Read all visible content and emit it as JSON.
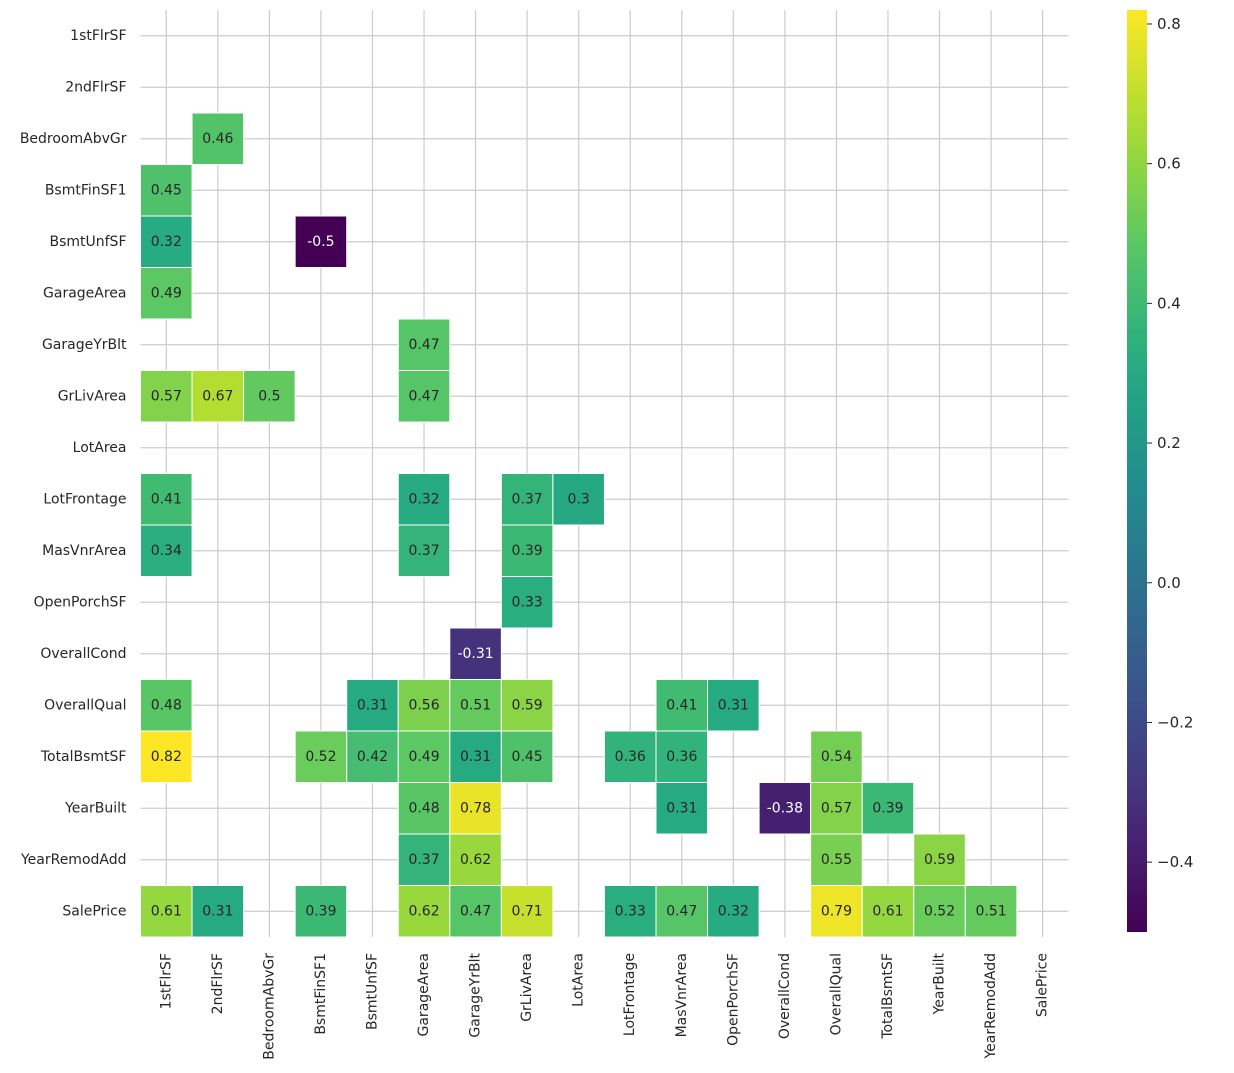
{
  "chart_data": {
    "type": "heatmap",
    "title": "",
    "xlabel": "",
    "ylabel": "",
    "colormap": "viridis",
    "threshold_note": "",
    "value_range": [
      -0.5,
      0.82
    ],
    "x_labels": [
      "1stFlrSF",
      "2ndFlrSF",
      "BedroomAbvGr",
      "BsmtFinSF1",
      "BsmtUnfSF",
      "GarageArea",
      "GarageYrBlt",
      "GrLivArea",
      "LotArea",
      "LotFrontage",
      "MasVnrArea",
      "OpenPorchSF",
      "OverallCond",
      "OverallQual",
      "TotalBsmtSF",
      "YearBuilt",
      "YearRemodAdd",
      "SalePrice"
    ],
    "y_labels": [
      "1stFlrSF",
      "2ndFlrSF",
      "BedroomAbvGr",
      "BsmtFinSF1",
      "BsmtUnfSF",
      "GarageArea",
      "GarageYrBlt",
      "GrLivArea",
      "LotArea",
      "LotFrontage",
      "MasVnrArea",
      "OpenPorchSF",
      "OverallCond",
      "OverallQual",
      "TotalBsmtSF",
      "YearBuilt",
      "YearRemodAdd",
      "SalePrice"
    ],
    "cells": [
      {
        "row": "BedroomAbvGr",
        "col": "2ndFlrSF",
        "value": 0.46,
        "label": "0.46"
      },
      {
        "row": "BsmtFinSF1",
        "col": "1stFlrSF",
        "value": 0.45,
        "label": "0.45"
      },
      {
        "row": "BsmtUnfSF",
        "col": "1stFlrSF",
        "value": 0.32,
        "label": "0.32"
      },
      {
        "row": "BsmtUnfSF",
        "col": "BsmtFinSF1",
        "value": -0.5,
        "label": "-0.5"
      },
      {
        "row": "GarageArea",
        "col": "1stFlrSF",
        "value": 0.49,
        "label": "0.49"
      },
      {
        "row": "GarageYrBlt",
        "col": "GarageArea",
        "value": 0.47,
        "label": "0.47"
      },
      {
        "row": "GrLivArea",
        "col": "1stFlrSF",
        "value": 0.57,
        "label": "0.57"
      },
      {
        "row": "GrLivArea",
        "col": "2ndFlrSF",
        "value": 0.67,
        "label": "0.67"
      },
      {
        "row": "GrLivArea",
        "col": "BedroomAbvGr",
        "value": 0.5,
        "label": "0.5"
      },
      {
        "row": "GrLivArea",
        "col": "GarageArea",
        "value": 0.47,
        "label": "0.47"
      },
      {
        "row": "LotFrontage",
        "col": "1stFlrSF",
        "value": 0.41,
        "label": "0.41"
      },
      {
        "row": "LotFrontage",
        "col": "GarageArea",
        "value": 0.32,
        "label": "0.32"
      },
      {
        "row": "LotFrontage",
        "col": "GrLivArea",
        "value": 0.37,
        "label": "0.37"
      },
      {
        "row": "LotFrontage",
        "col": "LotArea",
        "value": 0.3,
        "label": "0.3"
      },
      {
        "row": "MasVnrArea",
        "col": "1stFlrSF",
        "value": 0.34,
        "label": "0.34"
      },
      {
        "row": "MasVnrArea",
        "col": "GarageArea",
        "value": 0.37,
        "label": "0.37"
      },
      {
        "row": "MasVnrArea",
        "col": "GrLivArea",
        "value": 0.39,
        "label": "0.39"
      },
      {
        "row": "OpenPorchSF",
        "col": "GrLivArea",
        "value": 0.33,
        "label": "0.33"
      },
      {
        "row": "OverallCond",
        "col": "GarageYrBlt",
        "value": -0.31,
        "label": "-0.31"
      },
      {
        "row": "OverallQual",
        "col": "1stFlrSF",
        "value": 0.48,
        "label": "0.48"
      },
      {
        "row": "OverallQual",
        "col": "BsmtUnfSF",
        "value": 0.31,
        "label": "0.31"
      },
      {
        "row": "OverallQual",
        "col": "GarageArea",
        "value": 0.56,
        "label": "0.56"
      },
      {
        "row": "OverallQual",
        "col": "GarageYrBlt",
        "value": 0.51,
        "label": "0.51"
      },
      {
        "row": "OverallQual",
        "col": "GrLivArea",
        "value": 0.59,
        "label": "0.59"
      },
      {
        "row": "OverallQual",
        "col": "MasVnrArea",
        "value": 0.41,
        "label": "0.41"
      },
      {
        "row": "OverallQual",
        "col": "OpenPorchSF",
        "value": 0.31,
        "label": "0.31"
      },
      {
        "row": "TotalBsmtSF",
        "col": "1stFlrSF",
        "value": 0.82,
        "label": "0.82"
      },
      {
        "row": "TotalBsmtSF",
        "col": "BsmtFinSF1",
        "value": 0.52,
        "label": "0.52"
      },
      {
        "row": "TotalBsmtSF",
        "col": "BsmtUnfSF",
        "value": 0.42,
        "label": "0.42"
      },
      {
        "row": "TotalBsmtSF",
        "col": "GarageArea",
        "value": 0.49,
        "label": "0.49"
      },
      {
        "row": "TotalBsmtSF",
        "col": "GarageYrBlt",
        "value": 0.31,
        "label": "0.31"
      },
      {
        "row": "TotalBsmtSF",
        "col": "GrLivArea",
        "value": 0.45,
        "label": "0.45"
      },
      {
        "row": "TotalBsmtSF",
        "col": "LotFrontage",
        "value": 0.36,
        "label": "0.36"
      },
      {
        "row": "TotalBsmtSF",
        "col": "MasVnrArea",
        "value": 0.36,
        "label": "0.36"
      },
      {
        "row": "TotalBsmtSF",
        "col": "OverallQual",
        "value": 0.54,
        "label": "0.54"
      },
      {
        "row": "YearBuilt",
        "col": "GarageArea",
        "value": 0.48,
        "label": "0.48"
      },
      {
        "row": "YearBuilt",
        "col": "GarageYrBlt",
        "value": 0.78,
        "label": "0.78"
      },
      {
        "row": "YearBuilt",
        "col": "MasVnrArea",
        "value": 0.31,
        "label": "0.31"
      },
      {
        "row": "YearBuilt",
        "col": "OverallCond",
        "value": -0.38,
        "label": "-0.38"
      },
      {
        "row": "YearBuilt",
        "col": "OverallQual",
        "value": 0.57,
        "label": "0.57"
      },
      {
        "row": "YearBuilt",
        "col": "TotalBsmtSF",
        "value": 0.39,
        "label": "0.39"
      },
      {
        "row": "YearRemodAdd",
        "col": "GarageArea",
        "value": 0.37,
        "label": "0.37"
      },
      {
        "row": "YearRemodAdd",
        "col": "GarageYrBlt",
        "value": 0.62,
        "label": "0.62"
      },
      {
        "row": "YearRemodAdd",
        "col": "OverallQual",
        "value": 0.55,
        "label": "0.55"
      },
      {
        "row": "YearRemodAdd",
        "col": "YearBuilt",
        "value": 0.59,
        "label": "0.59"
      },
      {
        "row": "SalePrice",
        "col": "1stFlrSF",
        "value": 0.61,
        "label": "0.61"
      },
      {
        "row": "SalePrice",
        "col": "2ndFlrSF",
        "value": 0.31,
        "label": "0.31"
      },
      {
        "row": "SalePrice",
        "col": "BsmtFinSF1",
        "value": 0.39,
        "label": "0.39"
      },
      {
        "row": "SalePrice",
        "col": "GarageArea",
        "value": 0.62,
        "label": "0.62"
      },
      {
        "row": "SalePrice",
        "col": "GarageYrBlt",
        "value": 0.47,
        "label": "0.47"
      },
      {
        "row": "SalePrice",
        "col": "GrLivArea",
        "value": 0.71,
        "label": "0.71"
      },
      {
        "row": "SalePrice",
        "col": "LotFrontage",
        "value": 0.33,
        "label": "0.33"
      },
      {
        "row": "SalePrice",
        "col": "MasVnrArea",
        "value": 0.47,
        "label": "0.47"
      },
      {
        "row": "SalePrice",
        "col": "OpenPorchSF",
        "value": 0.32,
        "label": "0.32"
      },
      {
        "row": "SalePrice",
        "col": "OverallQual",
        "value": 0.79,
        "label": "0.79"
      },
      {
        "row": "SalePrice",
        "col": "TotalBsmtSF",
        "value": 0.61,
        "label": "0.61"
      },
      {
        "row": "SalePrice",
        "col": "YearBuilt",
        "value": 0.52,
        "label": "0.52"
      },
      {
        "row": "SalePrice",
        "col": "YearRemodAdd",
        "value": 0.51,
        "label": "0.51"
      }
    ],
    "colorbar": {
      "ticks": [
        -0.4,
        -0.2,
        0.0,
        0.2,
        0.4,
        0.6,
        0.8
      ],
      "tick_labels": [
        "−0.4",
        "−0.2",
        "0.0",
        "0.2",
        "0.4",
        "0.6",
        "0.8"
      ]
    },
    "grid": true,
    "style": {
      "grid_color": "#cccccc",
      "text_dark": "#262626",
      "text_light": "#ffffff"
    }
  }
}
